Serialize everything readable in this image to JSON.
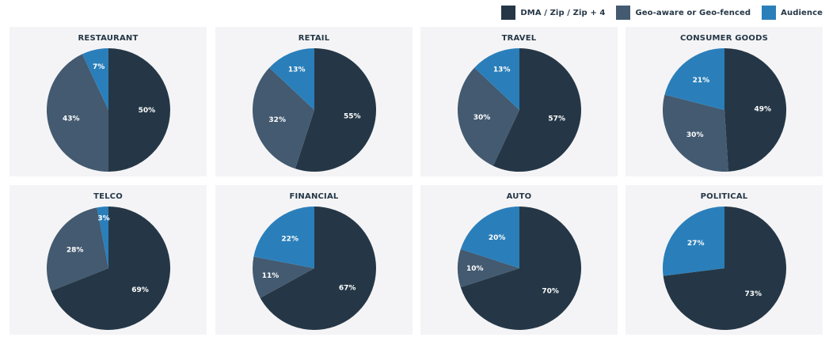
{
  "legend": [
    {
      "label": "DMA / Zip / Zip + 4",
      "color": "#253746"
    },
    {
      "label": "Geo-aware or Geo-fenced",
      "color": "#435a70"
    },
    {
      "label": "Audience",
      "color": "#2a7fba"
    }
  ],
  "chart_data": [
    {
      "type": "pie",
      "title": "RESTAURANT",
      "labels": [
        "DMA / Zip / Zip + 4",
        "Geo-aware or Geo-fenced",
        "Audience"
      ],
      "values": [
        50,
        43,
        7
      ]
    },
    {
      "type": "pie",
      "title": "RETAIL",
      "labels": [
        "DMA / Zip / Zip + 4",
        "Geo-aware or Geo-fenced",
        "Audience"
      ],
      "values": [
        55,
        32,
        13
      ]
    },
    {
      "type": "pie",
      "title": "TRAVEL",
      "labels": [
        "DMA / Zip / Zip + 4",
        "Geo-aware or Geo-fenced",
        "Audience"
      ],
      "values": [
        57,
        30,
        13
      ]
    },
    {
      "type": "pie",
      "title": "CONSUMER GOODS",
      "labels": [
        "DMA / Zip / Zip + 4",
        "Geo-aware or Geo-fenced",
        "Audience"
      ],
      "values": [
        49,
        30,
        21
      ]
    },
    {
      "type": "pie",
      "title": "TELCO",
      "labels": [
        "DMA / Zip / Zip + 4",
        "Geo-aware or Geo-fenced",
        "Audience"
      ],
      "values": [
        69,
        28,
        3
      ]
    },
    {
      "type": "pie",
      "title": "FINANCIAL",
      "labels": [
        "DMA / Zip / Zip + 4",
        "Geo-aware or Geo-fenced",
        "Audience"
      ],
      "values": [
        67,
        11,
        22
      ]
    },
    {
      "type": "pie",
      "title": "AUTO",
      "labels": [
        "DMA / Zip / Zip + 4",
        "Geo-aware or Geo-fenced",
        "Audience"
      ],
      "values": [
        70,
        10,
        20
      ]
    },
    {
      "type": "pie",
      "title": "POLITICAL",
      "labels": [
        "DMA / Zip / Zip + 4",
        "Geo-aware or Geo-fenced",
        "Audience"
      ],
      "values": [
        73,
        0,
        27
      ]
    }
  ]
}
